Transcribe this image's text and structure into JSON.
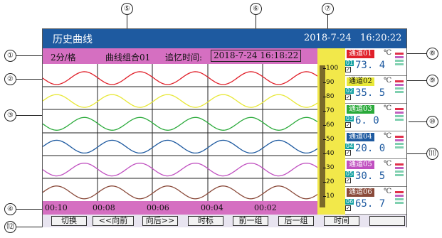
{
  "window": {
    "title": "历史曲线",
    "date": "2018-7-24",
    "time": "16:20:22"
  },
  "info": {
    "scale": "2分/格",
    "group": "曲线组合01",
    "recall_label": "追忆时间:",
    "recall_time": "2018-7-24 16:18:22"
  },
  "time_axis": [
    "00:10",
    "00:08",
    "00:06",
    "00:04",
    "00:02"
  ],
  "scale_ticks": [
    "100",
    "90",
    "80",
    "70",
    "60",
    "50",
    "40",
    "30",
    "20",
    "10"
  ],
  "channels": [
    {
      "name": "通道01",
      "num": "01",
      "unit": "℃",
      "value": "73. 4",
      "color": "#e0202a"
    },
    {
      "name": "通道02",
      "num": "02",
      "unit": "℃",
      "value": "35. 5",
      "color": "#e8e838"
    },
    {
      "name": "通道03",
      "num": "03",
      "unit": "℃",
      "value": "6. 0",
      "color": "#2aaa3a"
    },
    {
      "name": "通道04",
      "num": "04",
      "unit": "℃",
      "value": "20. 0",
      "color": "#1e5aa0"
    },
    {
      "name": "通道05",
      "num": "05",
      "unit": "℃",
      "value": "30. 5",
      "color": "#c050c0"
    },
    {
      "name": "通道06",
      "num": "06",
      "unit": "℃",
      "value": "65. 7",
      "color": "#8a4a3a"
    }
  ],
  "buttons": [
    "切换",
    "<<向前",
    "向后>>",
    "时标",
    "前一组",
    "后一组",
    "时间",
    ""
  ],
  "callouts": [
    "①",
    "②",
    "③",
    "④",
    "⑤",
    "⑥",
    "⑦",
    "⑧",
    "⑨",
    "⑩",
    "⑾",
    "⑿"
  ],
  "colors": {
    "titlebar": "#1e5aa0",
    "infobar": "#d56fc1",
    "scale": "#f2e84a",
    "value_text": "#1e5aa0"
  }
}
